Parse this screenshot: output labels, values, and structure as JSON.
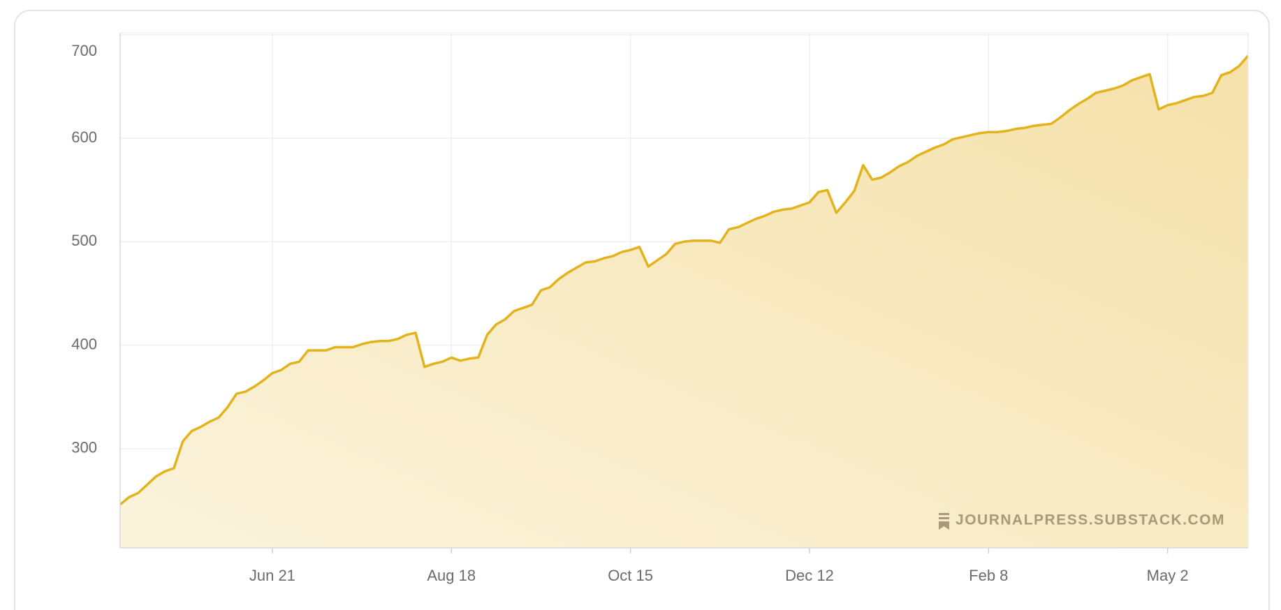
{
  "chart_data": {
    "type": "area",
    "categories": [
      null,
      null,
      null,
      null,
      null,
      null,
      null,
      null,
      null,
      null,
      null,
      null,
      null,
      null,
      null,
      null,
      null,
      "Jun 21",
      null,
      null,
      null,
      null,
      null,
      null,
      null,
      null,
      null,
      null,
      null,
      null,
      null,
      null,
      null,
      null,
      null,
      null,
      null,
      "Aug 18",
      null,
      null,
      null,
      null,
      null,
      null,
      null,
      null,
      null,
      null,
      null,
      null,
      null,
      null,
      null,
      null,
      null,
      null,
      null,
      "Oct 15",
      null,
      null,
      null,
      null,
      null,
      null,
      null,
      null,
      null,
      null,
      null,
      null,
      null,
      null,
      null,
      null,
      null,
      null,
      null,
      "Dec 12",
      null,
      null,
      null,
      null,
      null,
      null,
      null,
      null,
      null,
      null,
      null,
      null,
      null,
      null,
      null,
      null,
      null,
      null,
      null,
      "Feb 8",
      null,
      null,
      null,
      null,
      null,
      null,
      null,
      null,
      null,
      null,
      null,
      null,
      null,
      null,
      null,
      null,
      null,
      null,
      null,
      "May 2",
      null,
      null,
      null,
      null,
      null,
      null,
      null,
      null,
      null
    ],
    "values": [
      246,
      253,
      257,
      265,
      273,
      278,
      281,
      307,
      317,
      321,
      326,
      330,
      340,
      353,
      355,
      360,
      366,
      373,
      376,
      382,
      384,
      395,
      395,
      395,
      398,
      398,
      398,
      401,
      403,
      404,
      404,
      406,
      410,
      412,
      379,
      382,
      384,
      388,
      385,
      387,
      388,
      410,
      420,
      425,
      433,
      436,
      439,
      453,
      456,
      464,
      470,
      475,
      480,
      481,
      484,
      486,
      490,
      492,
      495,
      476,
      482,
      488,
      498,
      500,
      501,
      501,
      501,
      499,
      512,
      514,
      518,
      522,
      525,
      529,
      531,
      532,
      535,
      538,
      548,
      550,
      528,
      538,
      549,
      574,
      560,
      562,
      567,
      573,
      577,
      583,
      587,
      591,
      594,
      599,
      601,
      603,
      605,
      606,
      606,
      607,
      609,
      610,
      612,
      613,
      614,
      620,
      627,
      633,
      638,
      644,
      646,
      648,
      651,
      656,
      659,
      662,
      628,
      632,
      634,
      637,
      640,
      641,
      644,
      661,
      664,
      670,
      680
    ],
    "color": "#e2b31d",
    "ylim": [
      204,
      702
    ],
    "yticks": [
      300,
      400,
      500,
      600,
      700
    ],
    "grid": true,
    "watermark": "JOURNALPRESS.SUBSTACK.COM"
  }
}
